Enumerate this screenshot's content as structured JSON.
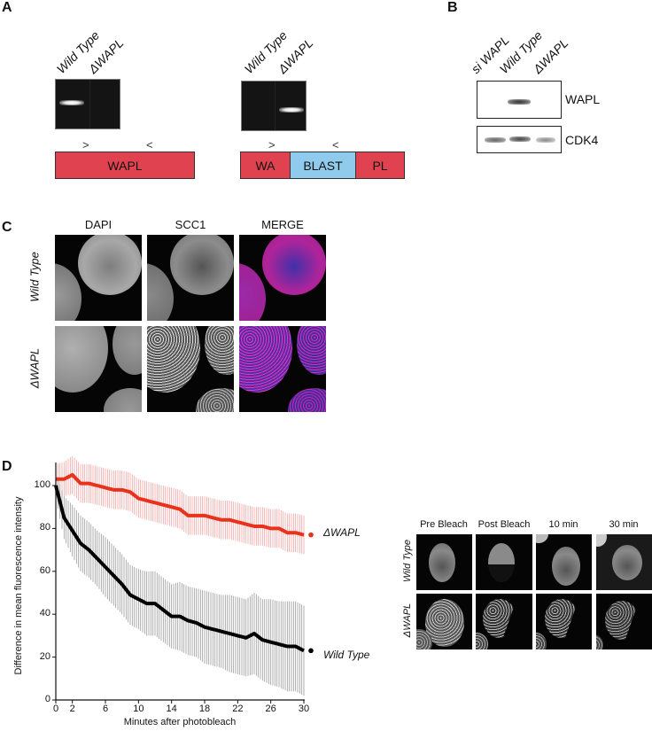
{
  "panels": {
    "A": {
      "letter": "A",
      "left": {
        "lanes": [
          "Wild Type",
          "ΔWAPL"
        ],
        "gene_label": "WAPL",
        "primer_fwd": ">",
        "primer_rev": "<"
      },
      "right": {
        "lanes": [
          "Wild Type",
          "ΔWAPL"
        ],
        "segments": [
          "WA",
          "BLAST",
          "PL"
        ],
        "primer_fwd": ">",
        "primer_rev": "<"
      }
    },
    "B": {
      "letter": "B",
      "lanes": [
        "si WAPL",
        "Wild Type",
        "ΔWAPL"
      ],
      "blots": [
        "WAPL",
        "CDK4"
      ]
    },
    "C": {
      "letter": "C",
      "columns": [
        "DAPI",
        "SCC1",
        "MERGE"
      ],
      "rows": [
        "Wild Type",
        "ΔWAPL"
      ]
    },
    "D": {
      "letter": "D",
      "image_columns": [
        "Pre Bleach",
        "Post Bleach",
        "10 min",
        "30 min"
      ],
      "image_rows": [
        "Wild Type",
        "ΔWAPL"
      ]
    }
  },
  "colors": {
    "wapl_box": "#e0434f",
    "blast_box": "#8fcbec",
    "delta_wapl_series": "#e8321c",
    "delta_wapl_error": "#f2a3a3",
    "wild_type_series": "#000000",
    "wild_type_error": "#9a9a9a",
    "merge_magenta": "#c0209a",
    "merge_blue": "#3a2aa0"
  },
  "chart_data": {
    "type": "line",
    "title": "",
    "xlabel": "Minutes after photobleach",
    "ylabel": "Difference in mean fluorescence intensity",
    "xlim": [
      0,
      30
    ],
    "ylim": [
      0,
      110
    ],
    "x_ticks": [
      0,
      2,
      6,
      10,
      14,
      18,
      22,
      26,
      30
    ],
    "y_ticks": [
      0,
      20,
      40,
      60,
      80,
      100
    ],
    "grid": false,
    "legend_position": "right, inline at series end",
    "x": [
      0,
      1,
      2,
      3,
      4,
      5,
      6,
      7,
      8,
      9,
      10,
      11,
      12,
      13,
      14,
      15,
      16,
      17,
      18,
      19,
      20,
      21,
      22,
      23,
      24,
      25,
      26,
      27,
      28,
      29,
      30
    ],
    "series": [
      {
        "name": "ΔWAPL",
        "color": "#e8321c",
        "values": [
          103,
          103,
          105,
          101,
          101,
          100,
          99,
          98,
          98,
          97,
          94,
          93,
          92,
          91,
          90,
          89,
          86,
          86,
          86,
          85,
          84,
          84,
          83,
          82,
          81,
          81,
          80,
          80,
          78,
          78,
          77
        ],
        "error": [
          7,
          8,
          9,
          9,
          9,
          9,
          9,
          9,
          9,
          9,
          9,
          9,
          9,
          9,
          9,
          9,
          9,
          9,
          9,
          9,
          9,
          9,
          9,
          9,
          9,
          9,
          9,
          9,
          9,
          9,
          9
        ]
      },
      {
        "name": "Wild Type",
        "color": "#000000",
        "values": [
          100,
          85,
          79,
          73,
          70,
          66,
          62,
          58,
          54,
          49,
          47,
          45,
          45,
          42,
          39,
          39,
          37,
          36,
          34,
          33,
          32,
          31,
          30,
          29,
          31,
          28,
          27,
          26,
          25,
          25,
          23
        ],
        "error": [
          6,
          10,
          12,
          13,
          13,
          13,
          14,
          14,
          14,
          14,
          14,
          15,
          15,
          15,
          15,
          16,
          16,
          16,
          17,
          17,
          17,
          18,
          18,
          18,
          19,
          19,
          20,
          20,
          21,
          21,
          21
        ]
      }
    ]
  }
}
